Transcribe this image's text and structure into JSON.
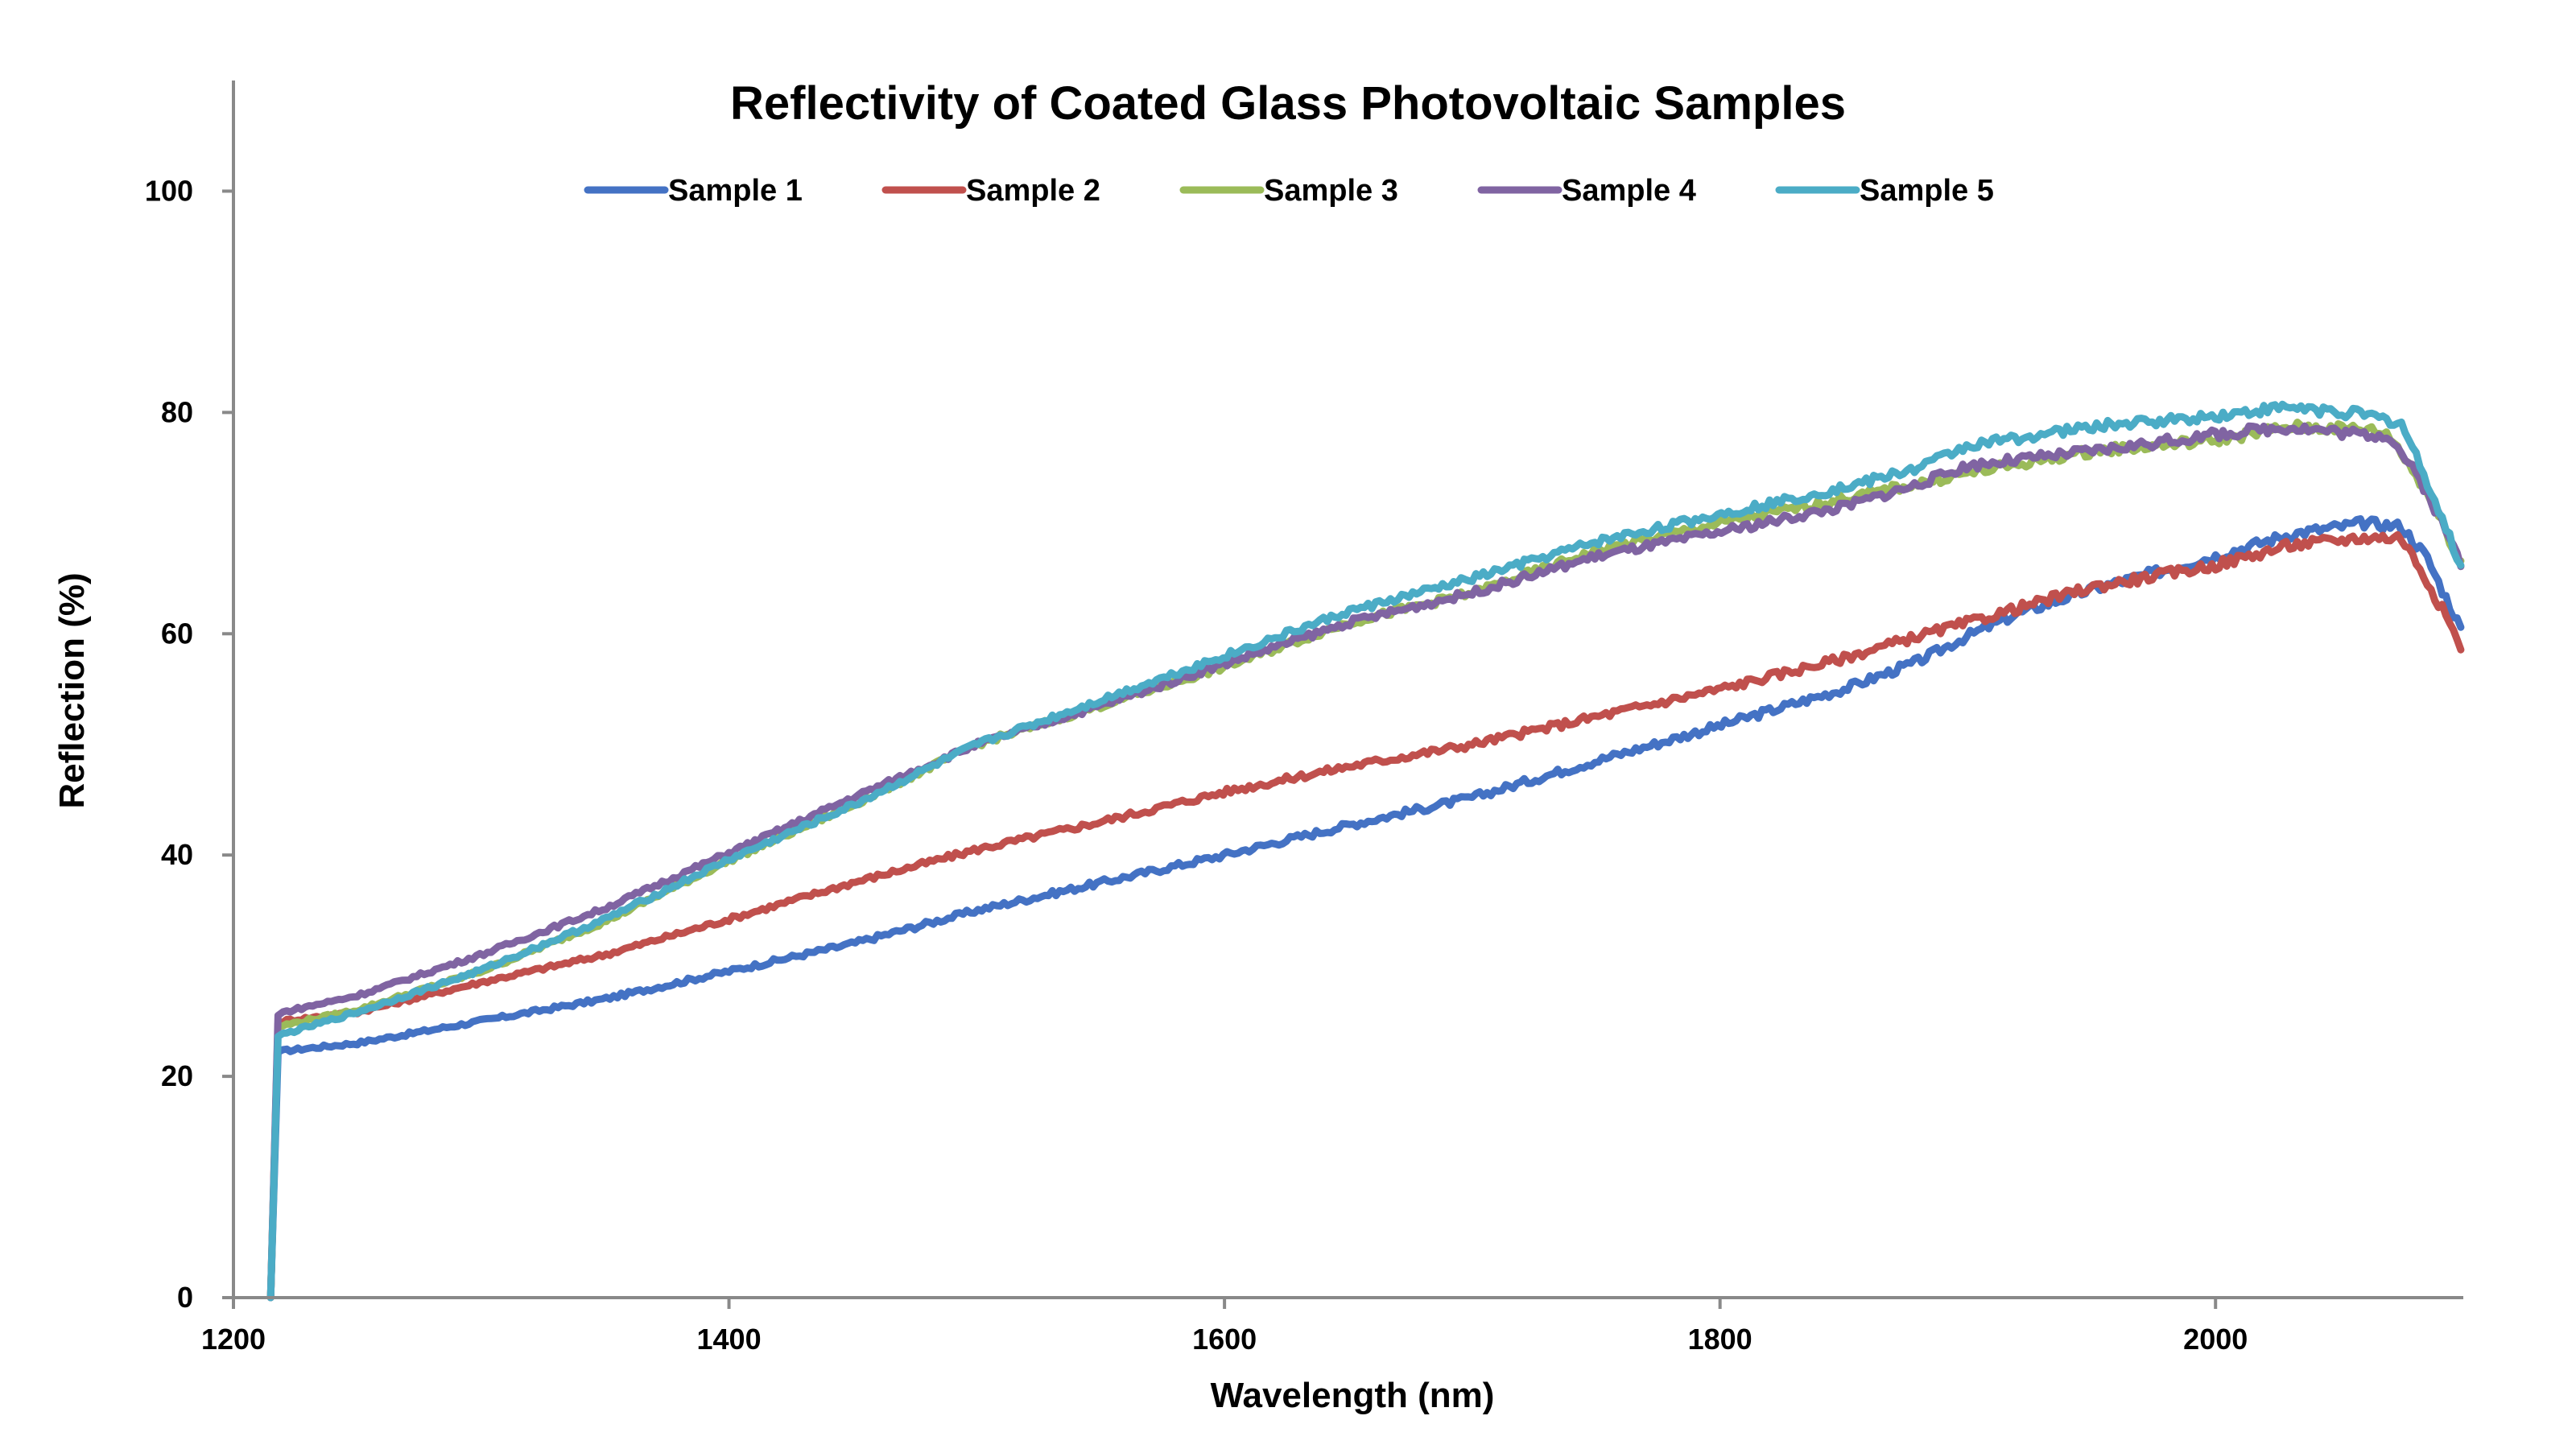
{
  "chart_data": {
    "type": "line",
    "title": "Reflectivity of Coated Glass Photovoltaic Samples",
    "xlabel": "Wavelength (nm)",
    "ylabel": "Reflection (%)",
    "xlim": [
      1200,
      2100
    ],
    "ylim": [
      0,
      110
    ],
    "x_ticks": [
      1200,
      1400,
      1600,
      1800,
      2000
    ],
    "y_ticks": [
      0,
      20,
      40,
      60,
      80,
      100
    ],
    "grid": false,
    "legend_position": "top",
    "series": [
      {
        "name": "Sample 1",
        "color": "#4472C4",
        "points": [
          [
            1215,
            0
          ],
          [
            1218,
            22.2
          ],
          [
            1220,
            22.3
          ],
          [
            1250,
            23
          ],
          [
            1300,
            25
          ],
          [
            1350,
            27
          ],
          [
            1400,
            29.5
          ],
          [
            1450,
            32
          ],
          [
            1500,
            35
          ],
          [
            1550,
            37.5
          ],
          [
            1600,
            40
          ],
          [
            1650,
            42.7
          ],
          [
            1700,
            45.2
          ],
          [
            1750,
            48.5
          ],
          [
            1800,
            51.7
          ],
          [
            1850,
            55
          ],
          [
            1880,
            57.5
          ],
          [
            1900,
            59.8
          ],
          [
            1920,
            61.8
          ],
          [
            1950,
            64
          ],
          [
            2000,
            67
          ],
          [
            2030,
            69
          ],
          [
            2060,
            70
          ],
          [
            2075,
            69.7
          ],
          [
            2085,
            67
          ],
          [
            2100,
            60
          ]
        ]
      },
      {
        "name": "Sample 2",
        "color": "#C0504D",
        "points": [
          [
            1215,
            0
          ],
          [
            1218,
            24.8
          ],
          [
            1220,
            25
          ],
          [
            1250,
            25.8
          ],
          [
            1300,
            28.5
          ],
          [
            1350,
            31
          ],
          [
            1400,
            34.2
          ],
          [
            1450,
            37.5
          ],
          [
            1500,
            40.5
          ],
          [
            1550,
            43
          ],
          [
            1600,
            45.7
          ],
          [
            1650,
            48
          ],
          [
            1700,
            50
          ],
          [
            1750,
            52.5
          ],
          [
            1800,
            55
          ],
          [
            1850,
            57.8
          ],
          [
            1880,
            59.8
          ],
          [
            1900,
            61
          ],
          [
            1920,
            62.3
          ],
          [
            1950,
            64.2
          ],
          [
            2000,
            66.2
          ],
          [
            2030,
            68
          ],
          [
            2060,
            68.7
          ],
          [
            2075,
            68.7
          ],
          [
            2085,
            65
          ],
          [
            2100,
            58.5
          ]
        ]
      },
      {
        "name": "Sample 3",
        "color": "#9BBB59",
        "points": [
          [
            1215,
            0
          ],
          [
            1218,
            24.5
          ],
          [
            1220,
            24.6
          ],
          [
            1250,
            26
          ],
          [
            1300,
            29.5
          ],
          [
            1350,
            34
          ],
          [
            1400,
            39.5
          ],
          [
            1450,
            44.5
          ],
          [
            1500,
            50
          ],
          [
            1550,
            53.5
          ],
          [
            1600,
            57
          ],
          [
            1650,
            61
          ],
          [
            1700,
            63.7
          ],
          [
            1750,
            67.5
          ],
          [
            1800,
            70
          ],
          [
            1850,
            72.2
          ],
          [
            1900,
            74.5
          ],
          [
            1950,
            76.5
          ],
          [
            2000,
            77.5
          ],
          [
            2030,
            78.7
          ],
          [
            2060,
            78.5
          ],
          [
            2070,
            78
          ],
          [
            2085,
            73
          ],
          [
            2100,
            66
          ]
        ]
      },
      {
        "name": "Sample 4",
        "color": "#8064A2",
        "points": [
          [
            1215,
            0
          ],
          [
            1218,
            25.5
          ],
          [
            1220,
            25.8
          ],
          [
            1250,
            27.3
          ],
          [
            1300,
            31
          ],
          [
            1350,
            35.2
          ],
          [
            1400,
            40.2
          ],
          [
            1450,
            45.2
          ],
          [
            1500,
            50
          ],
          [
            1550,
            53.5
          ],
          [
            1600,
            57.3
          ],
          [
            1650,
            61
          ],
          [
            1700,
            63.7
          ],
          [
            1750,
            67
          ],
          [
            1800,
            69.2
          ],
          [
            1850,
            71.5
          ],
          [
            1880,
            73.5
          ],
          [
            1900,
            75.2
          ],
          [
            1950,
            76.5
          ],
          [
            2000,
            78
          ],
          [
            2030,
            78.7
          ],
          [
            2060,
            78
          ],
          [
            2070,
            78
          ],
          [
            2085,
            73
          ],
          [
            2100,
            66
          ]
        ]
      },
      {
        "name": "Sample 5",
        "color": "#4BACC6",
        "points": [
          [
            1215,
            0
          ],
          [
            1218,
            23.6
          ],
          [
            1220,
            23.8
          ],
          [
            1250,
            25.8
          ],
          [
            1300,
            29.6
          ],
          [
            1350,
            34.2
          ],
          [
            1400,
            39.6
          ],
          [
            1450,
            44.5
          ],
          [
            1500,
            50
          ],
          [
            1550,
            54
          ],
          [
            1600,
            58
          ],
          [
            1650,
            62
          ],
          [
            1700,
            65
          ],
          [
            1750,
            68.3
          ],
          [
            1800,
            70.8
          ],
          [
            1850,
            73.2
          ],
          [
            1880,
            75
          ],
          [
            1900,
            77
          ],
          [
            1950,
            78.7
          ],
          [
            2000,
            79.7
          ],
          [
            2030,
            80.5
          ],
          [
            2060,
            79.8
          ],
          [
            2075,
            79
          ],
          [
            2085,
            74
          ],
          [
            2100,
            65.5
          ]
        ]
      }
    ]
  }
}
